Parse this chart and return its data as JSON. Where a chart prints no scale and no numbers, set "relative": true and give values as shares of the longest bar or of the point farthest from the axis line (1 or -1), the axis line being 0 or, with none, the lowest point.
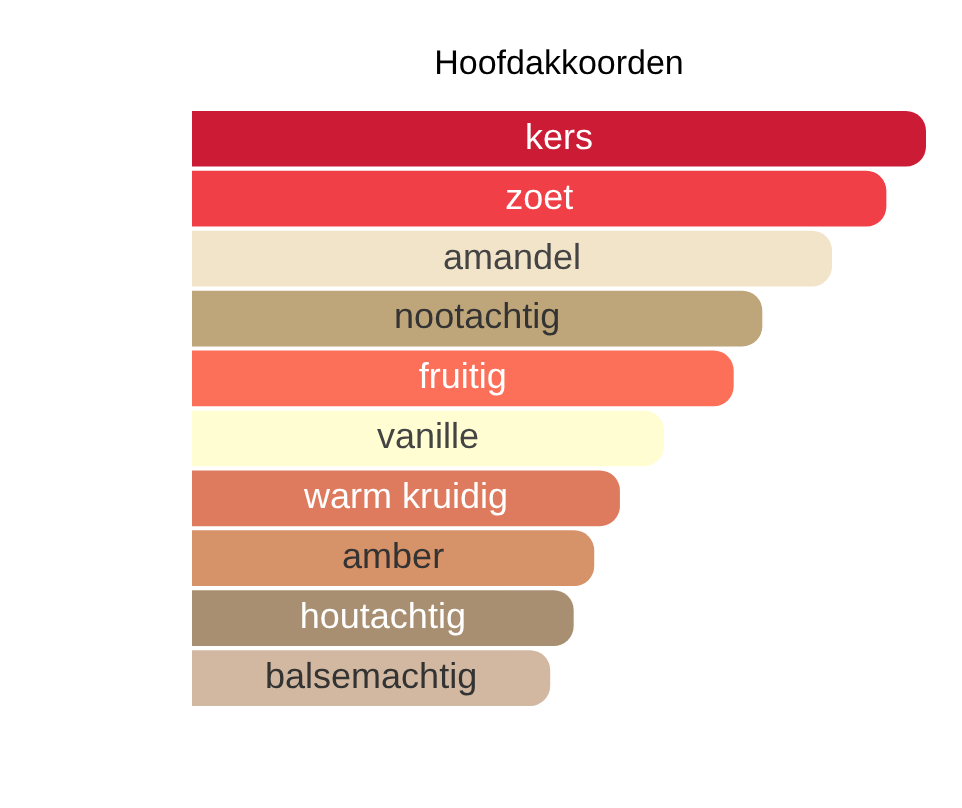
{
  "chart_data": {
    "type": "bar",
    "title": "Hoofdakkoorden",
    "orientation": "horizontal",
    "relative": true,
    "categories": [
      "kers",
      "zoet",
      "amandel",
      "nootachtig",
      "fruitig",
      "vanille",
      "warm kruidig",
      "amber",
      "houtachtig",
      "balsemachtig"
    ],
    "values": [
      1,
      0.946,
      0.872,
      0.777,
      0.738,
      0.643,
      0.583,
      0.548,
      0.52,
      0.488
    ],
    "colors": [
      "#cc1b34",
      "#f03f46",
      "#f2e4c9",
      "#bfa67a",
      "#fc6f58",
      "#fffdd1",
      "#de7b5e",
      "#d69268",
      "#a98f71",
      "#d2b8a0"
    ]
  }
}
